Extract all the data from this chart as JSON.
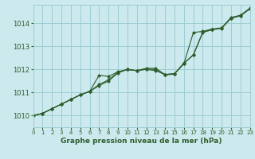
{
  "xlabel": "Graphe pression niveau de la mer (hPa)",
  "xlim": [
    0,
    23
  ],
  "ylim": [
    1009.5,
    1014.8
  ],
  "yticks": [
    1010,
    1011,
    1012,
    1013,
    1014
  ],
  "xticks": [
    0,
    1,
    2,
    3,
    4,
    5,
    6,
    7,
    8,
    9,
    10,
    11,
    12,
    13,
    14,
    15,
    16,
    17,
    18,
    19,
    20,
    21,
    22,
    23
  ],
  "background_color": "#cce9ed",
  "grid_color": "#9ecdd4",
  "line_color": "#2d5e2d",
  "series1": [
    [
      0,
      1010.0
    ],
    [
      1,
      1010.1
    ],
    [
      2,
      1010.3
    ],
    [
      3,
      1010.5
    ],
    [
      4,
      1010.7
    ],
    [
      5,
      1010.9
    ],
    [
      6,
      1011.05
    ],
    [
      7,
      1011.75
    ],
    [
      8,
      1011.7
    ],
    [
      9,
      1011.9
    ],
    [
      10,
      1012.0
    ],
    [
      11,
      1011.95
    ],
    [
      12,
      1012.0
    ],
    [
      13,
      1011.95
    ],
    [
      14,
      1011.78
    ],
    [
      15,
      1011.82
    ],
    [
      16,
      1012.25
    ],
    [
      17,
      1013.6
    ],
    [
      18,
      1013.65
    ],
    [
      19,
      1013.75
    ],
    [
      20,
      1013.8
    ],
    [
      21,
      1014.25
    ],
    [
      22,
      1014.35
    ],
    [
      23,
      1014.65
    ]
  ],
  "series2": [
    [
      0,
      1010.0
    ],
    [
      1,
      1010.1
    ],
    [
      2,
      1010.3
    ],
    [
      3,
      1010.5
    ],
    [
      4,
      1010.7
    ],
    [
      5,
      1010.9
    ],
    [
      6,
      1011.05
    ],
    [
      7,
      1011.3
    ],
    [
      8,
      1011.5
    ],
    [
      9,
      1011.85
    ],
    [
      10,
      1012.0
    ],
    [
      11,
      1011.95
    ],
    [
      12,
      1012.05
    ],
    [
      13,
      1012.05
    ],
    [
      14,
      1011.78
    ],
    [
      15,
      1011.82
    ],
    [
      16,
      1012.28
    ],
    [
      17,
      1012.62
    ],
    [
      18,
      1013.6
    ],
    [
      19,
      1013.72
    ],
    [
      20,
      1013.78
    ],
    [
      21,
      1014.22
    ],
    [
      22,
      1014.32
    ],
    [
      23,
      1014.62
    ]
  ],
  "series3": [
    [
      0,
      1010.0
    ],
    [
      1,
      1010.1
    ],
    [
      2,
      1010.3
    ],
    [
      3,
      1010.5
    ],
    [
      4,
      1010.7
    ],
    [
      5,
      1010.9
    ],
    [
      6,
      1011.05
    ],
    [
      7,
      1011.35
    ],
    [
      8,
      1011.55
    ],
    [
      9,
      1011.88
    ],
    [
      10,
      1012.0
    ],
    [
      11,
      1011.95
    ],
    [
      12,
      1012.02
    ],
    [
      13,
      1012.0
    ],
    [
      14,
      1011.76
    ],
    [
      15,
      1011.8
    ],
    [
      16,
      1012.26
    ],
    [
      17,
      1012.64
    ],
    [
      18,
      1013.62
    ],
    [
      19,
      1013.74
    ],
    [
      20,
      1013.79
    ],
    [
      21,
      1014.23
    ],
    [
      22,
      1014.33
    ],
    [
      23,
      1014.63
    ]
  ]
}
